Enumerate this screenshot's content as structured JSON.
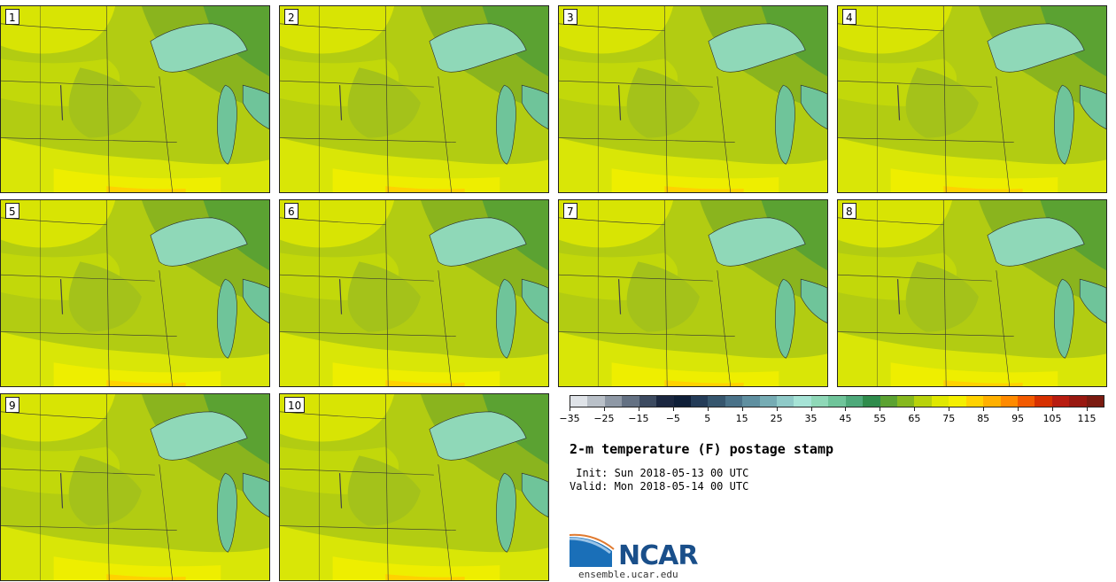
{
  "panels": [
    {
      "label": "1"
    },
    {
      "label": "2"
    },
    {
      "label": "3"
    },
    {
      "label": "4"
    },
    {
      "label": "5"
    },
    {
      "label": "6"
    },
    {
      "label": "7"
    },
    {
      "label": "8"
    },
    {
      "label": "9"
    },
    {
      "label": "10"
    }
  ],
  "colorbar": {
    "colors": [
      "#dfe3e8",
      "#b9c0c8",
      "#8e98a5",
      "#647183",
      "#3c4a60",
      "#1b2740",
      "#0f1f38",
      "#243c58",
      "#36566e",
      "#4a7289",
      "#5f8fa0",
      "#76acb4",
      "#8fcac8",
      "#a6e3d6",
      "#8fd8b8",
      "#6fc49a",
      "#4ea97a",
      "#2f8c4c",
      "#5ba232",
      "#86b81e",
      "#b8d20c",
      "#e0e800",
      "#f4ef00",
      "#ffd200",
      "#ffb000",
      "#ff8a00",
      "#f25a00",
      "#d63000",
      "#b81c10",
      "#981810",
      "#7a1a10"
    ],
    "tick_values": [
      "−35",
      "−25",
      "−15",
      "−5",
      "5",
      "15",
      "25",
      "35",
      "45",
      "55",
      "65",
      "75",
      "85",
      "95",
      "105",
      "115"
    ]
  },
  "title": "2-m temperature (F) postage stamp",
  "init_line": " Init: Sun 2018-05-13 00 UTC",
  "valid_line": "Valid: Mon 2018-05-14 00 UTC",
  "logo": {
    "name": "NCAR",
    "site": "ensemble.ucar.edu"
  }
}
